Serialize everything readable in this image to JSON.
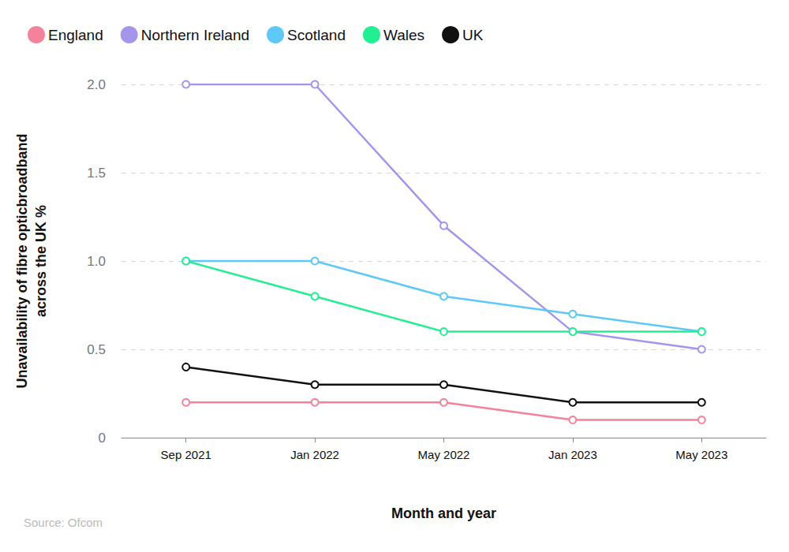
{
  "chart_data": {
    "type": "line",
    "x_label": "Month and year",
    "y_label": "Unavailability of fibre opticbroadband\nacross the UK %",
    "source": "Source: Ofcom",
    "categories": [
      "Sep 2021",
      "Jan 2022",
      "May 2022",
      "Jan 2023",
      "May 2023"
    ],
    "series": [
      {
        "name": "England",
        "color": "#f4829b",
        "values": [
          0.2,
          0.2,
          0.2,
          0.1,
          0.1
        ]
      },
      {
        "name": "Northern Ireland",
        "color": "#a596ec",
        "values": [
          2.0,
          2.0,
          1.2,
          0.6,
          0.5
        ]
      },
      {
        "name": "Scotland",
        "color": "#5ec8f7",
        "values": [
          1.0,
          1.0,
          0.8,
          0.7,
          0.6
        ]
      },
      {
        "name": "Wales",
        "color": "#22ef92",
        "values": [
          1.0,
          0.8,
          0.6,
          0.6,
          0.6
        ]
      },
      {
        "name": "UK",
        "color": "#111111",
        "values": [
          0.4,
          0.3,
          0.3,
          0.2,
          0.2
        ]
      }
    ],
    "ylim": [
      0,
      2.0
    ],
    "yticks": [
      0,
      0.5,
      {
        "value": 1,
        "label": "1.0"
      },
      1.5,
      {
        "value": 2,
        "label": "2.0"
      }
    ],
    "grid": true,
    "legend": "top-left",
    "marker": "circle"
  }
}
